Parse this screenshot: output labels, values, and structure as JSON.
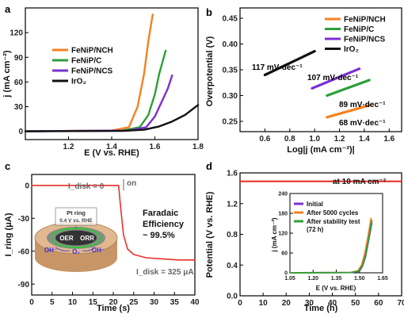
{
  "chart_data": [
    {
      "panel": "a",
      "type": "line",
      "xlabel": "E (V vs. RHE)",
      "ylabel": "j (mA cm⁻²)",
      "xlim": [
        1.0,
        1.8
      ],
      "ylim": [
        -10,
        150
      ],
      "xticks": [
        "1.2",
        "1.4",
        "1.6",
        "1.8"
      ],
      "yticks": [
        "0",
        "30",
        "60",
        "90",
        "120"
      ],
      "legend_position": "top-left",
      "series": [
        {
          "name": "FeNiP/NCH",
          "color": "#f58220",
          "x": [
            1.0,
            1.4,
            1.48,
            1.52,
            1.55,
            1.57,
            1.59
          ],
          "y": [
            0,
            1,
            5,
            30,
            70,
            110,
            142
          ]
        },
        {
          "name": "FeNiP/C",
          "color": "#2e9e3a",
          "x": [
            1.0,
            1.45,
            1.53,
            1.57,
            1.6,
            1.62,
            1.65
          ],
          "y": [
            0,
            1,
            5,
            20,
            45,
            70,
            98
          ]
        },
        {
          "name": "FeNiP/NCS",
          "color": "#7b2fd0",
          "x": [
            1.0,
            1.48,
            1.56,
            1.6,
            1.63,
            1.66,
            1.68
          ],
          "y": [
            0,
            1,
            5,
            18,
            35,
            52,
            68
          ]
        },
        {
          "name": "IrO2",
          "color": "#111111",
          "x": [
            1.0,
            1.45,
            1.55,
            1.62,
            1.68,
            1.74,
            1.8
          ],
          "y": [
            0,
            0.5,
            2,
            6,
            12,
            20,
            32
          ]
        }
      ]
    },
    {
      "panel": "b",
      "type": "line",
      "xlabel": "Log|j (mA cm⁻²)|",
      "ylabel": "Overpotential (V)",
      "xlim": [
        0.4,
        1.7
      ],
      "ylim": [
        0.23,
        0.47
      ],
      "xticks": [
        "0.6",
        "0.8",
        "1.0",
        "1.2",
        "1.4",
        "1.6"
      ],
      "yticks": [
        "0.25",
        "0.30",
        "0.35",
        "0.40",
        "0.45"
      ],
      "legend_position": "top-right",
      "series": [
        {
          "name": "FeNiP/NCH",
          "color": "#f58220",
          "x": [
            1.1,
            1.44
          ],
          "y": [
            0.258,
            0.281
          ]
        },
        {
          "name": "FeNiP/C",
          "color": "#2e9e3a",
          "x": [
            1.1,
            1.44
          ],
          "y": [
            0.3,
            0.33
          ]
        },
        {
          "name": "FeNiP/NCS",
          "color": "#7b2fd0",
          "x": [
            0.98,
            1.36
          ],
          "y": [
            0.314,
            0.352
          ]
        },
        {
          "name": "IrO2",
          "color": "#111111",
          "x": [
            0.6,
            1.0
          ],
          "y": [
            0.34,
            0.386
          ]
        }
      ],
      "annotations": [
        {
          "text": "117 mV·dec⁻¹",
          "color": "#111111"
        },
        {
          "text": "107 mV·dec⁻¹",
          "color": "#7b2fd0"
        },
        {
          "text": "89 mV·dec⁻¹",
          "color": "#2e9e3a"
        },
        {
          "text": "68 mV·dec⁻¹",
          "color": "#f58220"
        }
      ]
    },
    {
      "panel": "c",
      "type": "line",
      "xlabel": "Time (s)",
      "ylabel": "I_ring (μA)",
      "xlim": [
        0,
        40
      ],
      "ylim": [
        -100,
        10
      ],
      "xticks": [
        "0",
        "5",
        "10",
        "15",
        "20",
        "25",
        "30",
        "35",
        "40"
      ],
      "yticks": [
        "0",
        "-30",
        "-60",
        "-90"
      ],
      "series": [
        {
          "name": "",
          "color": "#e8322b",
          "x": [
            0,
            5,
            10,
            15,
            20,
            21.3,
            21.8,
            22.5,
            23.5,
            25,
            28,
            32,
            36,
            40
          ],
          "y": [
            0,
            0,
            0,
            0,
            0,
            0,
            -20,
            -45,
            -58,
            -63,
            -66,
            -67,
            -68,
            -68
          ]
        }
      ],
      "annotations": {
        "idisk_zero": "I_disk = 0",
        "on": "on",
        "faradaic_1": "Faradaic",
        "faradaic_2": "Efficiency",
        "faradaic_3": "~ 99.5%",
        "idisk_325": "I_disk = 325 μA",
        "pt_ring_1": "Pt ring",
        "pt_ring_2": "0.4 V vs. RHE",
        "oer": "OER",
        "orr": "ORR",
        "oh_left": "OH⁻",
        "o2": "O₂",
        "oh_right": "OH⁻"
      }
    },
    {
      "panel": "d",
      "type": "line",
      "xlabel": "Time (h)",
      "ylabel": "Potential (V vs. RHE)",
      "xlim": [
        0,
        70
      ],
      "ylim": [
        0.0,
        1.6
      ],
      "xticks": [
        "0",
        "10",
        "20",
        "30",
        "40",
        "50",
        "60",
        "70"
      ],
      "yticks": [
        "0.0",
        "0.4",
        "0.8",
        "1.2",
        "1.6"
      ],
      "series": [
        {
          "name": "",
          "color": "#e8322b",
          "x": [
            0,
            70
          ],
          "y": [
            1.49,
            1.49
          ]
        }
      ],
      "annotation": "at 10 mA cm⁻²",
      "inset": {
        "xlabel": "E (V vs. RHE)",
        "ylabel": "j (mA cm⁻²)",
        "xlim": [
          1.05,
          1.65
        ],
        "ylim": [
          0,
          240
        ],
        "xticks": [
          "1.05",
          "1.20",
          "1.35",
          "1.50",
          "1.65"
        ],
        "yticks": [
          "0",
          "60",
          "120",
          "180",
          "240"
        ],
        "series": [
          {
            "name": "Initial",
            "color": "#7b2fd0",
            "x": [
              1.05,
              1.45,
              1.5,
              1.52,
              1.54,
              1.56,
              1.58
            ],
            "y": [
              0,
              1,
              5,
              20,
              50,
              100,
              150
            ]
          },
          {
            "name": "After 5000 cycles",
            "color": "#f58220",
            "x": [
              1.05,
              1.44,
              1.49,
              1.515,
              1.535,
              1.555,
              1.575
            ],
            "y": [
              0,
              1,
              6,
              25,
              60,
              110,
              165
            ]
          },
          {
            "name": "After stability test",
            "color": "#2e9e3a",
            "x": [
              1.05,
              1.445,
              1.495,
              1.52,
              1.54,
              1.56,
              1.58
            ],
            "y": [
              0,
              1,
              5,
              22,
              55,
              105,
              158
            ]
          }
        ],
        "legend_extra": "(72 h)"
      }
    }
  ],
  "panel_labels": [
    "a",
    "b",
    "c",
    "d"
  ]
}
